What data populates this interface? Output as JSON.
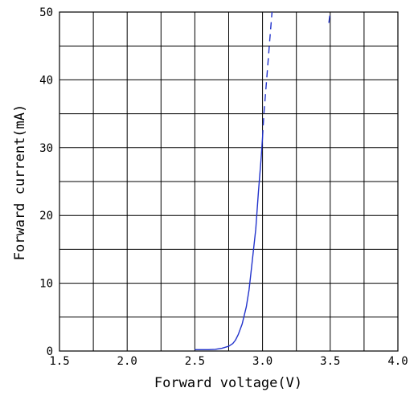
{
  "chart_data": {
    "type": "line",
    "title": "",
    "xlabel": "Forward voltage(V)",
    "ylabel": "Forward current(mA)",
    "xlim": [
      1.5,
      4.0
    ],
    "ylim": [
      0,
      50
    ],
    "grid": true,
    "x_ticks": [
      "1.5",
      "2.0",
      "2.5",
      "3.0",
      "3.5",
      "4.0"
    ],
    "y_ticks": [
      "0",
      "10",
      "20",
      "30",
      "40",
      "50"
    ],
    "colors": {
      "curve": "#2233cc",
      "grid": "#000000"
    },
    "series": [
      {
        "style": "solid",
        "x": [
          2.5,
          2.6,
          2.65,
          2.7,
          2.75,
          2.78,
          2.8,
          2.82,
          2.85,
          2.88,
          2.9,
          2.92,
          2.95,
          2.97,
          2.99,
          3.0
        ],
        "y": [
          0.2,
          0.2,
          0.25,
          0.4,
          0.7,
          1.1,
          1.6,
          2.4,
          4.0,
          6.5,
          9.0,
          12.5,
          18.0,
          23.5,
          28.5,
          31.5
        ]
      },
      {
        "style": "dashed",
        "x": [
          3.0,
          3.01,
          3.03,
          3.05,
          3.07
        ],
        "y": [
          31.5,
          35.0,
          40.0,
          45.0,
          50.0
        ]
      },
      {
        "style": "dashed",
        "x": [
          3.49,
          3.5
        ],
        "y": [
          48.4,
          50.0
        ]
      }
    ]
  }
}
